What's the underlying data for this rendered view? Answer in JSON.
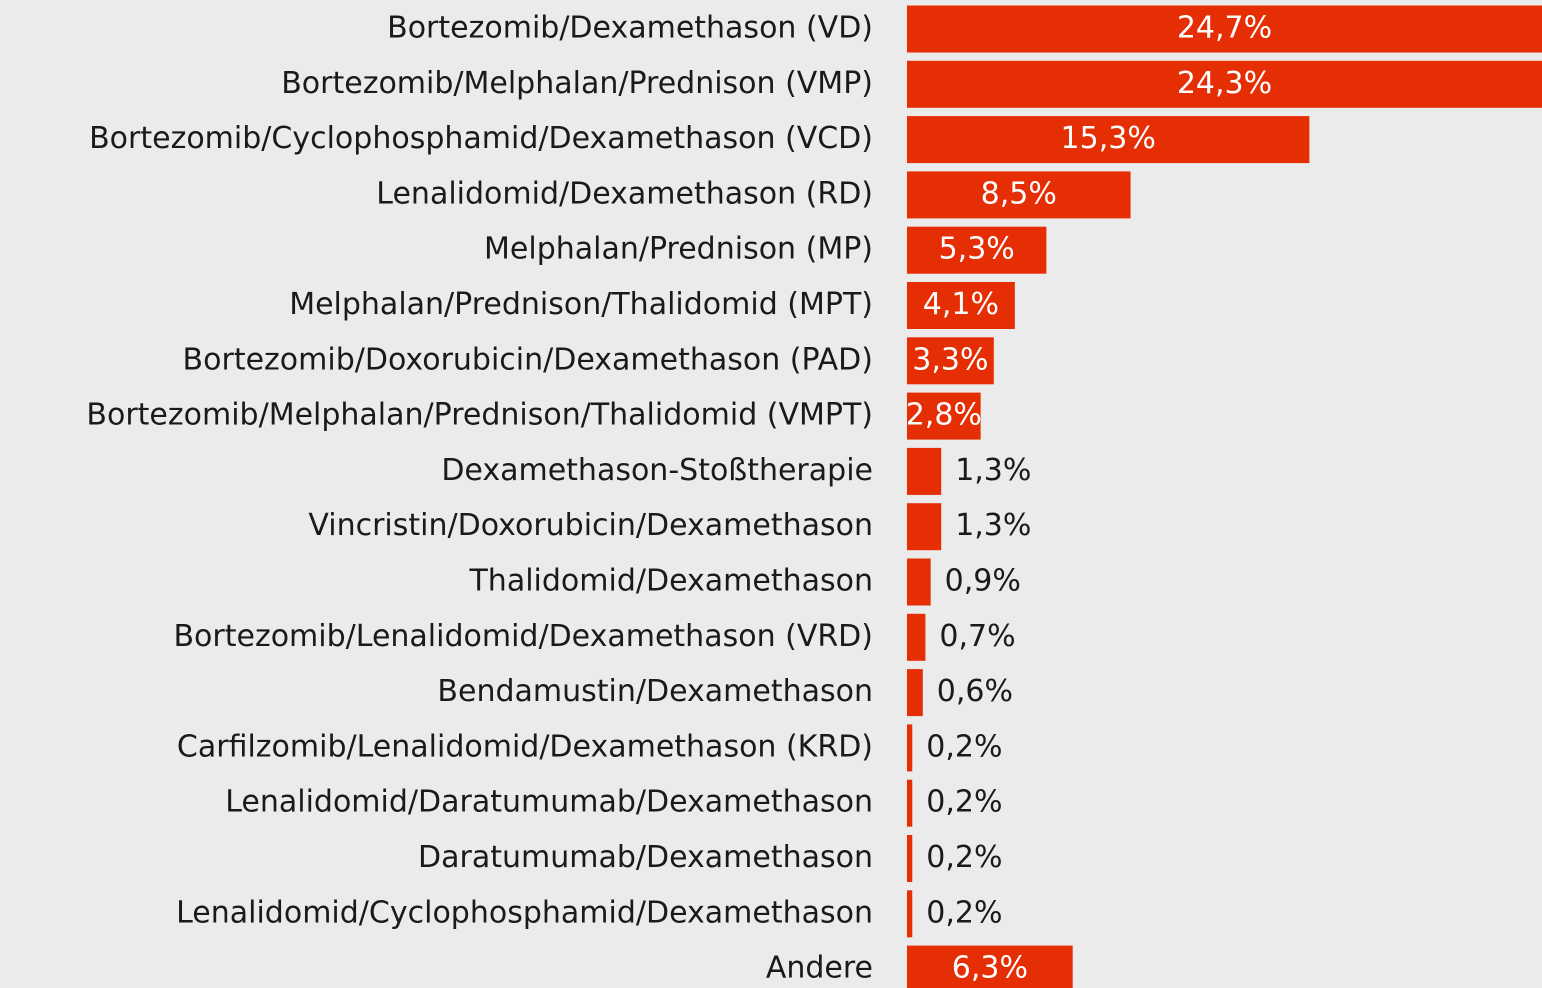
{
  "chart_data": {
    "type": "bar",
    "orientation": "horizontal",
    "color": "#e62e04",
    "categories": [
      "Bortezomib/Dexamethason (VD)",
      "Bortezomib/Melphalan/Prednison (VMP)",
      "Bortezomib/Cyclophosphamid/Dexamethason (VCD)",
      "Lenalidomid/Dexamethason (RD)",
      "Melphalan/Prednison (MP)",
      "Melphalan/Prednison/Thalidomid (MPT)",
      "Bortezomib/Doxorubicin/Dexamethason (PAD)",
      "Bortezomib/Melphalan/Prednison/Thalidomid (VMPT)",
      "Dexamethason-Stoßtherapie",
      "Vincristin/Doxorubicin/Dexamethason",
      "Thalidomid/Dexamethason",
      "Bortezomib/Lenalidomid/Dexamethason (VRD)",
      "Bendamustin/Dexamethason",
      "Carfilzomib/Lenalidomid/Dexamethason (KRD)",
      "Lenalidomid/Daratumumab/Dexamethason",
      "Daratumumab/Dexamethason",
      "Lenalidomid/Cyclophosphamid/Dexamethason",
      "Andere"
    ],
    "values": [
      24.7,
      24.3,
      15.3,
      8.5,
      5.3,
      4.1,
      3.3,
      2.8,
      1.3,
      1.3,
      0.9,
      0.7,
      0.6,
      0.2,
      0.2,
      0.2,
      0.2,
      6.3
    ],
    "value_labels": [
      "24,7%",
      "24,3%",
      "15,3%",
      "8,5%",
      "5,3%",
      "4,1%",
      "3,3%",
      "2,8%",
      "1,3%",
      "1,3%",
      "0,9%",
      "0,7%",
      "0,6%",
      "0,2%",
      "0,2%",
      "0,2%",
      "0,2%",
      "6,3%"
    ]
  }
}
